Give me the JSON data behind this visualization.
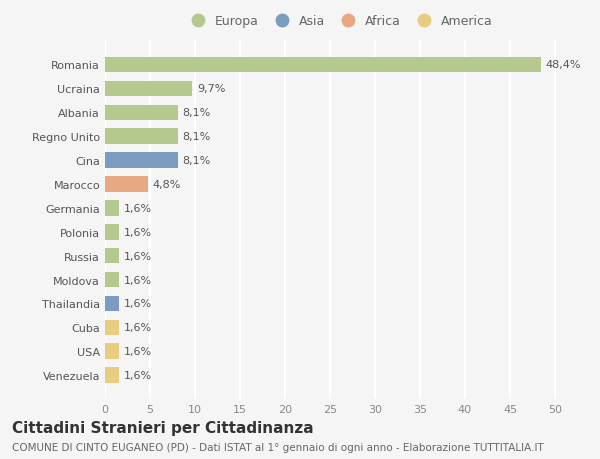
{
  "countries": [
    "Romania",
    "Ucraina",
    "Albania",
    "Regno Unito",
    "Cina",
    "Marocco",
    "Germania",
    "Polonia",
    "Russia",
    "Moldova",
    "Thailandia",
    "Cuba",
    "USA",
    "Venezuela"
  ],
  "values": [
    48.4,
    9.7,
    8.1,
    8.1,
    8.1,
    4.8,
    1.6,
    1.6,
    1.6,
    1.6,
    1.6,
    1.6,
    1.6,
    1.6
  ],
  "labels": [
    "48,4%",
    "9,7%",
    "8,1%",
    "8,1%",
    "8,1%",
    "4,8%",
    "1,6%",
    "1,6%",
    "1,6%",
    "1,6%",
    "1,6%",
    "1,6%",
    "1,6%",
    "1,6%"
  ],
  "continents": [
    "Europa",
    "Europa",
    "Europa",
    "Europa",
    "Asia",
    "Africa",
    "Europa",
    "Europa",
    "Europa",
    "Europa",
    "Asia",
    "America",
    "America",
    "America"
  ],
  "colors": {
    "Europa": "#b5c98e",
    "Asia": "#7b9bbf",
    "Africa": "#e8a882",
    "America": "#e8cc82"
  },
  "legend_order": [
    "Europa",
    "Asia",
    "Africa",
    "America"
  ],
  "title": "Cittadini Stranieri per Cittadinanza",
  "subtitle": "COMUNE DI CINTO EUGANEO (PD) - Dati ISTAT al 1° gennaio di ogni anno - Elaborazione TUTTITALIA.IT",
  "xlim": [
    0,
    52
  ],
  "xticks": [
    0,
    5,
    10,
    15,
    20,
    25,
    30,
    35,
    40,
    45,
    50
  ],
  "bg_color": "#f5f5f5",
  "grid_color": "#ffffff",
  "bar_height": 0.65,
  "label_fontsize": 8,
  "tick_fontsize": 8,
  "title_fontsize": 11,
  "subtitle_fontsize": 7.5,
  "legend_fontsize": 9
}
